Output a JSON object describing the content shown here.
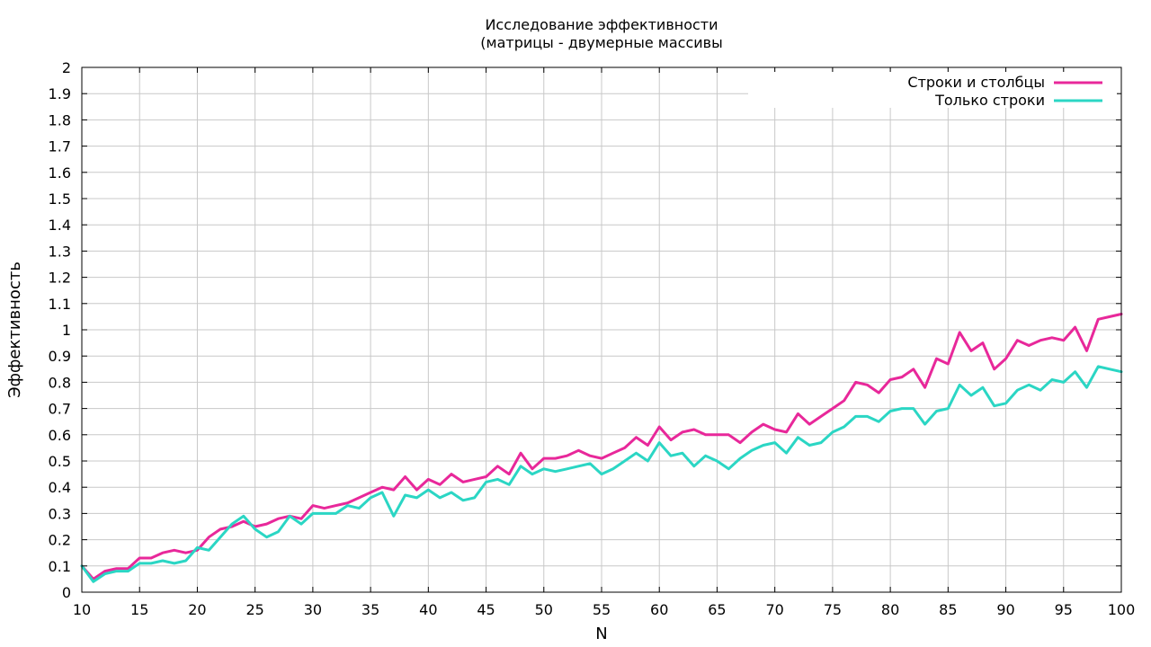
{
  "chart_data": {
    "type": "line",
    "title": [
      "Исследование эффективности",
      "(матрицы - двумерные массивы"
    ],
    "xlabel": "N",
    "ylabel": "Эффективность",
    "xlim": [
      10,
      100
    ],
    "ylim": [
      0,
      2
    ],
    "xticks": [
      10,
      15,
      20,
      25,
      30,
      35,
      40,
      45,
      50,
      55,
      60,
      65,
      70,
      75,
      80,
      85,
      90,
      95,
      100
    ],
    "yticks": [
      0,
      0.1,
      0.2,
      0.3,
      0.4,
      0.5,
      0.6,
      0.7,
      0.8,
      0.9,
      1,
      1.1,
      1.2,
      1.3,
      1.4,
      1.5,
      1.6,
      1.7,
      1.8,
      1.9,
      2
    ],
    "grid": true,
    "legend_position": "top-right",
    "x": [
      10,
      11,
      12,
      13,
      14,
      15,
      16,
      17,
      18,
      19,
      20,
      21,
      22,
      23,
      24,
      25,
      26,
      27,
      28,
      29,
      30,
      31,
      32,
      33,
      34,
      35,
      36,
      37,
      38,
      39,
      40,
      41,
      42,
      43,
      44,
      45,
      46,
      47,
      48,
      49,
      50,
      51,
      52,
      53,
      54,
      55,
      56,
      57,
      58,
      59,
      60,
      61,
      62,
      63,
      64,
      65,
      66,
      67,
      68,
      69,
      70,
      71,
      72,
      73,
      74,
      75,
      76,
      77,
      78,
      79,
      80,
      81,
      82,
      83,
      84,
      85,
      86,
      87,
      88,
      89,
      90,
      91,
      92,
      93,
      94,
      95,
      96,
      97,
      98,
      99,
      100
    ],
    "series": [
      {
        "name": "Строки и столбцы",
        "color": "#e8289a",
        "values": [
          0.1,
          0.05,
          0.08,
          0.09,
          0.09,
          0.13,
          0.13,
          0.15,
          0.16,
          0.15,
          0.16,
          0.21,
          0.24,
          0.25,
          0.27,
          0.25,
          0.26,
          0.28,
          0.29,
          0.28,
          0.33,
          0.32,
          0.33,
          0.34,
          0.36,
          0.38,
          0.4,
          0.39,
          0.44,
          0.39,
          0.43,
          0.41,
          0.45,
          0.42,
          0.43,
          0.44,
          0.48,
          0.45,
          0.53,
          0.47,
          0.51,
          0.51,
          0.52,
          0.54,
          0.52,
          0.51,
          0.53,
          0.55,
          0.59,
          0.56,
          0.63,
          0.58,
          0.61,
          0.62,
          0.6,
          0.6,
          0.6,
          0.57,
          0.61,
          0.64,
          0.62,
          0.61,
          0.68,
          0.64,
          0.67,
          0.7,
          0.73,
          0.8,
          0.79,
          0.76,
          0.81,
          0.82,
          0.85,
          0.78,
          0.89,
          0.87,
          0.99,
          0.92,
          0.95,
          0.85,
          0.89,
          0.96,
          0.94,
          0.96,
          0.97,
          0.96,
          1.01,
          0.92,
          1.04,
          1.05,
          1.06
        ]
      },
      {
        "name": "Только строки",
        "color": "#2bd6c4",
        "values": [
          0.1,
          0.04,
          0.07,
          0.08,
          0.08,
          0.11,
          0.11,
          0.12,
          0.11,
          0.12,
          0.17,
          0.16,
          0.21,
          0.26,
          0.29,
          0.24,
          0.21,
          0.23,
          0.29,
          0.26,
          0.3,
          0.3,
          0.3,
          0.33,
          0.32,
          0.36,
          0.38,
          0.29,
          0.37,
          0.36,
          0.39,
          0.36,
          0.38,
          0.35,
          0.36,
          0.42,
          0.43,
          0.41,
          0.48,
          0.45,
          0.47,
          0.46,
          0.47,
          0.48,
          0.49,
          0.45,
          0.47,
          0.5,
          0.53,
          0.5,
          0.57,
          0.52,
          0.53,
          0.48,
          0.52,
          0.5,
          0.47,
          0.51,
          0.54,
          0.56,
          0.57,
          0.53,
          0.59,
          0.56,
          0.57,
          0.61,
          0.63,
          0.67,
          0.67,
          0.65,
          0.69,
          0.7,
          0.7,
          0.64,
          0.69,
          0.7,
          0.79,
          0.75,
          0.78,
          0.71,
          0.72,
          0.77,
          0.79,
          0.77,
          0.81,
          0.8,
          0.84,
          0.78,
          0.86,
          0.85,
          0.84
        ]
      }
    ]
  }
}
